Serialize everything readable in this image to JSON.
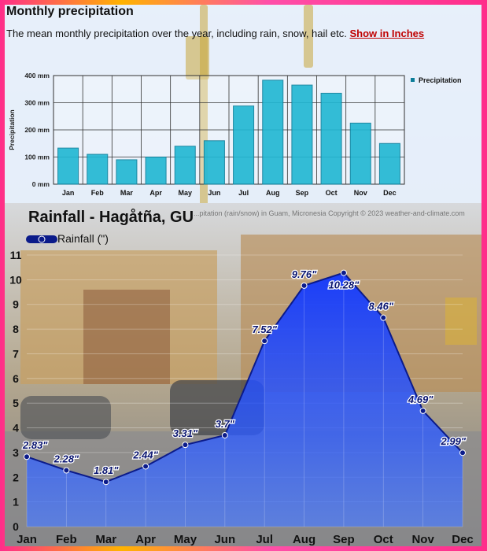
{
  "top": {
    "title": "Monthly precipitation",
    "description": "The mean monthly precipitation over the year, including rain, snow, hail etc.",
    "link_label": "Show in Inches"
  },
  "credit_text": "...pitation (rain/snow) in Guam, Micronesia   Copyright © 2023  weather-and-climate.com",
  "chart_data": [
    {
      "type": "bar",
      "title": "",
      "ylabel": "Precipitation",
      "categories": [
        "Jan",
        "Feb",
        "Mar",
        "Apr",
        "May",
        "Jun",
        "Jul",
        "Aug",
        "Sep",
        "Oct",
        "Nov",
        "Dec"
      ],
      "series": [
        {
          "name": "Precipitation",
          "values": [
            133,
            110,
            90,
            100,
            140,
            160,
            288,
            383,
            365,
            335,
            225,
            150
          ]
        }
      ],
      "ylim": [
        0,
        400
      ],
      "yticks": [
        "0 mm",
        "100 mm",
        "200 mm",
        "300 mm",
        "400 mm"
      ],
      "grid": true,
      "legend": "right",
      "colors": {
        "bar": "#1fb7d3",
        "bar_edge": "#0c7d99"
      }
    },
    {
      "type": "area",
      "title": "Rainfall - Hagåtña, GU",
      "categories": [
        "Jan",
        "Feb",
        "Mar",
        "Apr",
        "May",
        "Jun",
        "Jul",
        "Aug",
        "Sep",
        "Oct",
        "Nov",
        "Dec"
      ],
      "series": [
        {
          "name": "Rainfall (\")",
          "values": [
            2.83,
            2.28,
            1.81,
            2.44,
            3.31,
            3.7,
            7.52,
            9.76,
            10.28,
            8.46,
            4.69,
            2.99
          ]
        }
      ],
      "data_labels": [
        "2.83\"",
        "2.28\"",
        "1.81\"",
        "2.44\"",
        "3.31\"",
        "3.7\"",
        "7.52\"",
        "9.76\"",
        "10.28\"",
        "8.46\"",
        "4.69\"",
        "2.99\""
      ],
      "ylim": [
        0,
        11
      ],
      "yticks": [
        "0",
        "1",
        "2",
        "3",
        "4",
        "5",
        "6",
        "7",
        "8",
        "9",
        "10",
        "11"
      ],
      "legend": "top-left",
      "colors": {
        "area": "#1f47ff",
        "line": "#0b1b8a",
        "label": "#0a1570"
      }
    }
  ]
}
